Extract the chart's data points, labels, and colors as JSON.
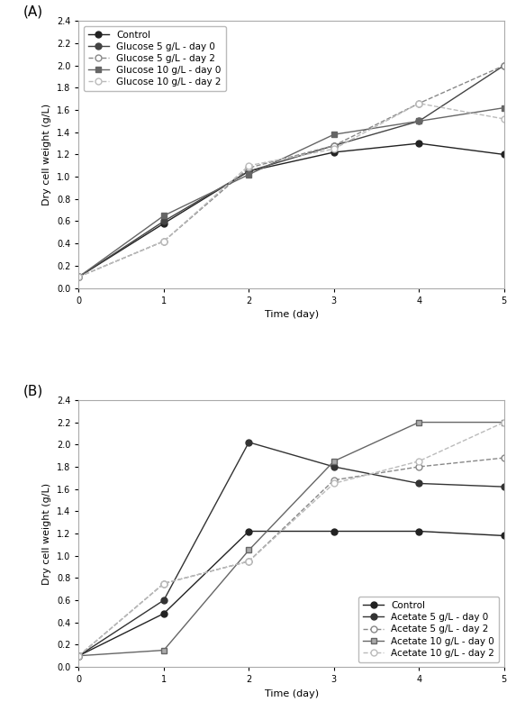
{
  "panel_A": {
    "label": "(A)",
    "xlabel": "Time (day)",
    "ylabel": "Dry cell weight (g/L)",
    "xlim": [
      0,
      5
    ],
    "ylim": [
      0,
      2.4
    ],
    "xticks": [
      0,
      1,
      2,
      3,
      4,
      5
    ],
    "yticks": [
      0,
      0.2,
      0.4,
      0.6,
      0.8,
      1.0,
      1.2,
      1.4,
      1.6,
      1.8,
      2.0,
      2.2,
      2.4
    ],
    "legend_loc": "upper left",
    "series": [
      {
        "label": "Control",
        "x": [
          0,
          1,
          2,
          3,
          4,
          5
        ],
        "y": [
          0.1,
          0.58,
          1.05,
          1.22,
          1.3,
          1.2
        ],
        "color": "#222222",
        "linestyle": "-",
        "marker": "o",
        "marker_face": "#222222",
        "marker_size": 5,
        "linewidth": 1.0
      },
      {
        "label": "Glucose 5 g/L - day 0",
        "x": [
          0,
          1,
          2,
          3,
          4,
          5
        ],
        "y": [
          0.1,
          0.6,
          1.05,
          1.28,
          1.5,
          2.0
        ],
        "color": "#444444",
        "linestyle": "-",
        "marker": "o",
        "marker_face": "#444444",
        "marker_size": 5,
        "linewidth": 1.0
      },
      {
        "label": "Glucose 5 g/L - day 2",
        "x": [
          0,
          1,
          2,
          3,
          4,
          5
        ],
        "y": [
          0.1,
          0.42,
          1.08,
          1.28,
          1.66,
          2.0
        ],
        "color": "#888888",
        "linestyle": "--",
        "marker": "o",
        "marker_face": "white",
        "marker_size": 5,
        "linewidth": 1.0
      },
      {
        "label": "Glucose 10 g/L - day 0",
        "x": [
          0,
          1,
          2,
          3,
          4,
          5
        ],
        "y": [
          0.1,
          0.65,
          1.02,
          1.38,
          1.5,
          1.62
        ],
        "color": "#666666",
        "linestyle": "-",
        "marker": "s",
        "marker_face": "#666666",
        "marker_size": 5,
        "linewidth": 1.0
      },
      {
        "label": "Glucose 10 g/L - day 2",
        "x": [
          0,
          1,
          2,
          3,
          4,
          5
        ],
        "y": [
          0.1,
          0.42,
          1.1,
          1.25,
          1.66,
          1.52
        ],
        "color": "#bbbbbb",
        "linestyle": "--",
        "marker": "o",
        "marker_face": "white",
        "marker_size": 5,
        "linewidth": 1.0
      }
    ]
  },
  "panel_B": {
    "label": "(B)",
    "xlabel": "Time (day)",
    "ylabel": "Dry cell weight (g/L)",
    "xlim": [
      0,
      5
    ],
    "ylim": [
      0,
      2.4
    ],
    "xticks": [
      0,
      1,
      2,
      3,
      4,
      5
    ],
    "yticks": [
      0,
      0.2,
      0.4,
      0.6,
      0.8,
      1.0,
      1.2,
      1.4,
      1.6,
      1.8,
      2.0,
      2.2,
      2.4
    ],
    "legend_loc": "lower right",
    "series": [
      {
        "label": "Control",
        "x": [
          0,
          1,
          2,
          3,
          4,
          5
        ],
        "y": [
          0.1,
          0.48,
          1.22,
          1.22,
          1.22,
          1.18
        ],
        "color": "#222222",
        "linestyle": "-",
        "marker": "o",
        "marker_face": "#222222",
        "marker_size": 5,
        "linewidth": 1.0
      },
      {
        "label": "Acetate 5 g/L - day 0",
        "x": [
          0,
          1,
          2,
          3,
          4,
          5
        ],
        "y": [
          0.1,
          0.6,
          2.02,
          1.8,
          1.65,
          1.62
        ],
        "color": "#333333",
        "linestyle": "-",
        "marker": "o",
        "marker_face": "#333333",
        "marker_size": 5,
        "linewidth": 1.0
      },
      {
        "label": "Acetate 5 g/L - day 2",
        "x": [
          0,
          1,
          2,
          3,
          4,
          5
        ],
        "y": [
          0.1,
          0.75,
          0.95,
          1.68,
          1.8,
          1.88
        ],
        "color": "#888888",
        "linestyle": "--",
        "marker": "o",
        "marker_face": "white",
        "marker_size": 5,
        "linewidth": 1.0
      },
      {
        "label": "Acetate 10 g/L - day 0",
        "x": [
          0,
          1,
          2,
          3,
          4,
          5
        ],
        "y": [
          0.1,
          0.15,
          1.05,
          1.85,
          2.2,
          2.2
        ],
        "color": "#666666",
        "linestyle": "-",
        "marker": "s",
        "marker_face": "#aaaaaa",
        "marker_size": 5,
        "linewidth": 1.0
      },
      {
        "label": "Acetate 10 g/L - day 2",
        "x": [
          0,
          1,
          2,
          3,
          4,
          5
        ],
        "y": [
          0.1,
          0.75,
          0.95,
          1.65,
          1.85,
          2.2
        ],
        "color": "#bbbbbb",
        "linestyle": "--",
        "marker": "o",
        "marker_face": "white",
        "marker_size": 5,
        "linewidth": 1.0
      }
    ]
  },
  "figure_bg": "#ffffff",
  "font_size": 7.5,
  "tick_font_size": 7,
  "label_font_size": 8
}
